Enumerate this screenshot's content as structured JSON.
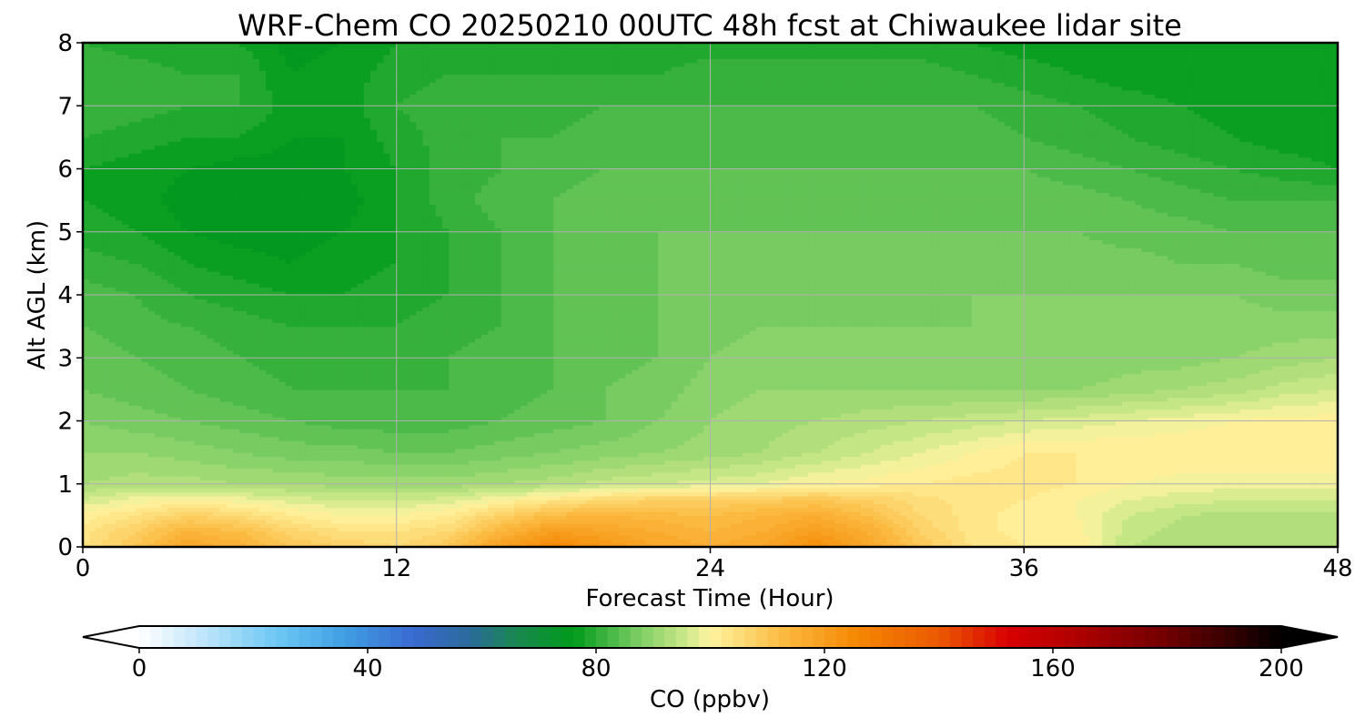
{
  "chart_data": {
    "type": "heatmap",
    "title": "WRF-Chem CO  20250210 00UTC 48h fcst at Chiwaukee lidar site",
    "xlabel": "Forecast Time (Hour)",
    "ylabel": "Alt AGL (km)",
    "xlim": [
      0,
      48
    ],
    "ylim": [
      0,
      8
    ],
    "x_ticks": [
      "0",
      "12",
      "24",
      "36",
      "48"
    ],
    "y_ticks": [
      "0",
      "1",
      "2",
      "3",
      "4",
      "5",
      "6",
      "7",
      "8"
    ],
    "grid": true,
    "x_hours": [
      0,
      2,
      4,
      6,
      8,
      10,
      12,
      14,
      16,
      18,
      20,
      22,
      24,
      26,
      28,
      30,
      32,
      34,
      36,
      38,
      40,
      42,
      44,
      46,
      48
    ],
    "z_km": [
      0,
      0.25,
      0.5,
      0.75,
      1,
      1.5,
      2,
      2.5,
      3,
      3.5,
      4,
      4.5,
      5,
      5.5,
      6,
      6.5,
      7,
      7.5,
      8
    ],
    "co_ppbv": [
      [
        104,
        110,
        118,
        115,
        110,
        108,
        106,
        110,
        120,
        126,
        122,
        118,
        116,
        118,
        124,
        118,
        110,
        104,
        102,
        102,
        94,
        92,
        92,
        92,
        92
      ],
      [
        103,
        108,
        114,
        112,
        107,
        104,
        104,
        106,
        114,
        120,
        118,
        116,
        114,
        116,
        120,
        116,
        108,
        103,
        101,
        101,
        95,
        93,
        92,
        92,
        92
      ],
      [
        101,
        104,
        108,
        106,
        102,
        100,
        100,
        102,
        108,
        113,
        114,
        113,
        112,
        114,
        116,
        112,
        106,
        103,
        101,
        100,
        96,
        94,
        93,
        93,
        93
      ],
      [
        96,
        99,
        100,
        99,
        97,
        96,
        96,
        97,
        100,
        103,
        106,
        108,
        108,
        109,
        110,
        108,
        105,
        103,
        102,
        100,
        98,
        97,
        96,
        96,
        96
      ],
      [
        92,
        93,
        93,
        92,
        92,
        91,
        91,
        91,
        92,
        93,
        95,
        96,
        97,
        98,
        100,
        101,
        102,
        103,
        103,
        102,
        100,
        99,
        99,
        99,
        99
      ],
      [
        90,
        90,
        89,
        88,
        87,
        87,
        86,
        86,
        87,
        88,
        89,
        90,
        91,
        92,
        94,
        96,
        98,
        100,
        102,
        102,
        102,
        102,
        102,
        102,
        102
      ],
      [
        88,
        87,
        86,
        85,
        84,
        83,
        83,
        83,
        84,
        85,
        86,
        88,
        90,
        91,
        92,
        93,
        94,
        95,
        96,
        97,
        98,
        99,
        100,
        101,
        101
      ],
      [
        86,
        85,
        84,
        83,
        82,
        82,
        82,
        82,
        83,
        84,
        86,
        87,
        89,
        90,
        90,
        90,
        90,
        90,
        90,
        90,
        91,
        92,
        93,
        95,
        96
      ],
      [
        85,
        84,
        83,
        82,
        81,
        81,
        81,
        82,
        83,
        84,
        85,
        86,
        88,
        89,
        89,
        88,
        88,
        88,
        88,
        88,
        89,
        89,
        90,
        91,
        92
      ],
      [
        84,
        83,
        82,
        81,
        80,
        80,
        80,
        81,
        82,
        84,
        85,
        86,
        87,
        88,
        88,
        88,
        88,
        88,
        88,
        88,
        89,
        89,
        89,
        89,
        89
      ],
      [
        83,
        82,
        80,
        79,
        78,
        78,
        79,
        80,
        82,
        84,
        85,
        86,
        87,
        87,
        87,
        87,
        87,
        88,
        88,
        88,
        88,
        88,
        88,
        87,
        87
      ],
      [
        81,
        80,
        78,
        77,
        76,
        77,
        78,
        80,
        82,
        84,
        85,
        86,
        86,
        86,
        86,
        86,
        86,
        86,
        87,
        87,
        87,
        86,
        86,
        85,
        85
      ],
      [
        79,
        78,
        76,
        75,
        75,
        76,
        78,
        80,
        82,
        84,
        85,
        86,
        86,
        86,
        86,
        86,
        86,
        86,
        86,
        86,
        85,
        85,
        84,
        84,
        84
      ],
      [
        78,
        77,
        75,
        74,
        74,
        75,
        78,
        81,
        83,
        84,
        85,
        85,
        85,
        85,
        85,
        85,
        85,
        85,
        85,
        85,
        84,
        83,
        82,
        82,
        82
      ],
      [
        78,
        77,
        76,
        75,
        75,
        76,
        78,
        81,
        82,
        83,
        84,
        84,
        84,
        84,
        84,
        84,
        84,
        84,
        84,
        83,
        82,
        81,
        80,
        79,
        78
      ],
      [
        80,
        79,
        78,
        78,
        76,
        76,
        79,
        81,
        82,
        82,
        83,
        83,
        83,
        83,
        83,
        83,
        83,
        83,
        82,
        81,
        80,
        79,
        78,
        77,
        77
      ],
      [
        82,
        81,
        80,
        80,
        77,
        77,
        80,
        81,
        81,
        81,
        82,
        82,
        82,
        82,
        82,
        82,
        82,
        82,
        81,
        80,
        79,
        78,
        77,
        77,
        76
      ],
      [
        82,
        81,
        80,
        80,
        76,
        77,
        79,
        80,
        80,
        80,
        80,
        80,
        81,
        81,
        81,
        81,
        81,
        80,
        79,
        78,
        77,
        77,
        77,
        78,
        77
      ],
      [
        80,
        79,
        79,
        78,
        75,
        76,
        78,
        79,
        79,
        79,
        79,
        79,
        79,
        79,
        79,
        79,
        79,
        78,
        77,
        77,
        77,
        78,
        78,
        78,
        78
      ]
    ],
    "colorbar": {
      "label": "CO  (ppbv)",
      "ticks": [
        "0",
        "40",
        "80",
        "120",
        "160",
        "200"
      ],
      "min": 0,
      "max": 200,
      "step": 2,
      "extend": "both",
      "palette": [
        [
          0,
          "#ffffff"
        ],
        [
          10,
          "#c6e8fb"
        ],
        [
          24,
          "#6ec8f5"
        ],
        [
          36,
          "#3f9ee2"
        ],
        [
          48,
          "#3a6ad0"
        ],
        [
          58,
          "#2a6a9a"
        ],
        [
          66,
          "#1a8850"
        ],
        [
          76,
          "#009a1a"
        ],
        [
          86,
          "#6dc85c"
        ],
        [
          96,
          "#cfe98a"
        ],
        [
          100,
          "#fff4a0"
        ],
        [
          112,
          "#fbbd45"
        ],
        [
          126,
          "#f48600"
        ],
        [
          140,
          "#ea5a00"
        ],
        [
          152,
          "#d80000"
        ],
        [
          164,
          "#b00000"
        ],
        [
          180,
          "#700000"
        ],
        [
          192,
          "#300000"
        ],
        [
          200,
          "#000000"
        ]
      ],
      "under_color": "#ffffff",
      "over_color": "#000000"
    }
  }
}
